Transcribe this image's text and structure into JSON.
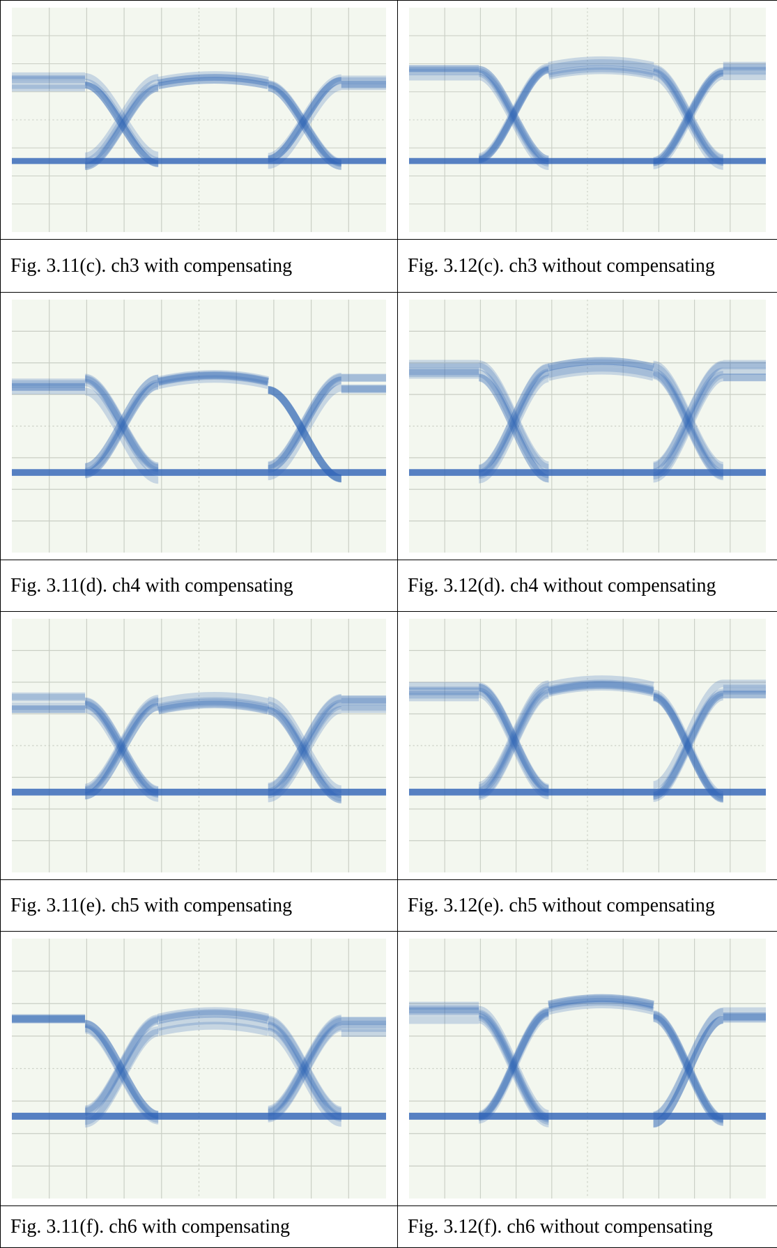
{
  "table": {
    "rows": [
      {
        "left": "Fig. 3.11(c). ch3 with compensating",
        "right": "Fig. 3.12(c). ch3 without compensating"
      },
      {
        "left": "Fig. 3.11(d). ch4 with compensating",
        "right": "Fig. 3.12(d). ch4 without compensating"
      },
      {
        "left": "Fig. 3.11(e). ch5 with compensating",
        "right": "Fig. 3.12(e). ch5 without compensating"
      },
      {
        "left": "Fig. 3.11(f). ch6 with compensating",
        "right": "Fig. 3.12(f). ch6 without compensating"
      }
    ]
  }
}
